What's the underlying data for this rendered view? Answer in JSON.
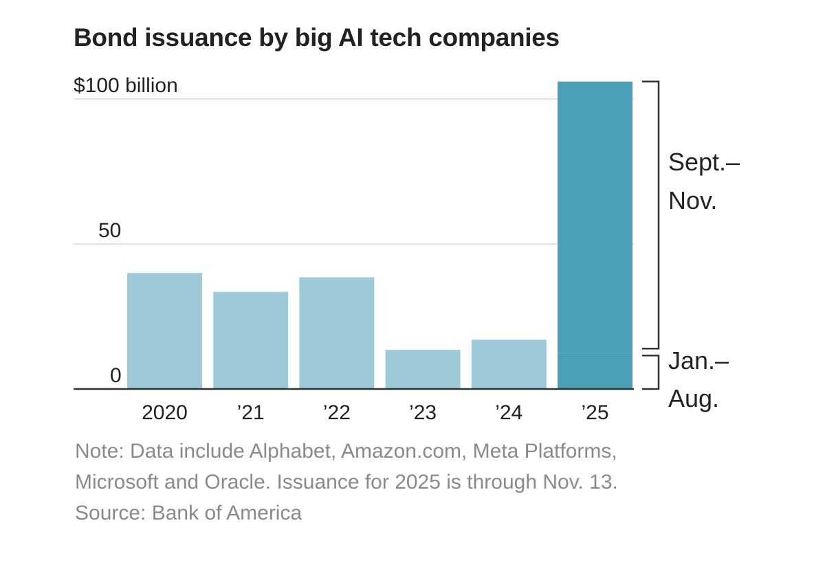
{
  "title": "Bond issuance by big AI tech companies",
  "colors": {
    "bar_light": "#9ccad7",
    "bar_dark_2025": "#4ba0b7",
    "axis": "#333333",
    "grid": "#e3e3e3",
    "text": "#222222",
    "note_text": "#8a8a8a"
  },
  "chart_data": {
    "type": "bar",
    "stacked": true,
    "categories": [
      "2020",
      "’21",
      "’22",
      "’23",
      "’24",
      "’25"
    ],
    "series": [
      {
        "name": "Jan.– Aug.",
        "values": [
          40,
          33.5,
          38.5,
          13.5,
          17,
          12.5
        ]
      },
      {
        "name": "Sept.– Nov.",
        "values": [
          0,
          0,
          0,
          0,
          0,
          93.5
        ]
      }
    ],
    "ylim": [
      0,
      106
    ],
    "yticks": [
      0,
      50,
      100
    ],
    "ytick_labels": [
      "0",
      "50",
      "$100 billion"
    ],
    "grid": true,
    "bracket_labels": [
      {
        "series": "Sept.– Nov.",
        "lines": [
          "Sept.–",
          "Nov."
        ]
      },
      {
        "series": "Jan.– Aug.",
        "lines": [
          "Jan.–",
          "Aug."
        ]
      }
    ]
  },
  "note": {
    "lines": [
      "Note: Data include Alphabet, Amazon.com, Meta Platforms,",
      "Microsoft and Oracle. Issuance for 2025 is through Nov. 13.",
      "Source: Bank of America"
    ]
  }
}
